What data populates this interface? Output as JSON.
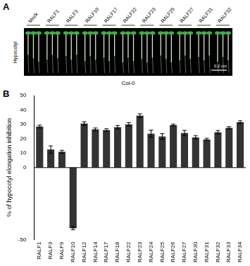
{
  "panel_a": {
    "label": "A",
    "column_labels": [
      "Mock",
      "RALF1",
      "RALF3",
      "RALF10",
      "RALF17",
      "RALF22",
      "RALF23",
      "RALF25",
      "RALF27",
      "RALF31",
      "RALF32"
    ],
    "side_label": "Hypocotyl",
    "scale_bar": "0.2 cm",
    "genotype": "Col-0"
  },
  "panel_b_label": "B",
  "chart_data": {
    "type": "bar",
    "y_label": "% of hypocotyl elongation inhibition",
    "categories": [
      "RALF1",
      "RALF3",
      "RALF9",
      "RALF10",
      "RALF12",
      "RALF14",
      "RALF17",
      "RALF18",
      "RALF22",
      "RALF23",
      "RALF24",
      "RALF25",
      "RALF26",
      "RALF27",
      "RALF30",
      "RALF31",
      "RALF32",
      "RALF33",
      "RALF34"
    ],
    "values": [
      28.5,
      12.5,
      11,
      -42,
      30.5,
      26.5,
      26,
      28,
      30,
      36,
      23.5,
      21.5,
      29.5,
      24,
      21,
      19.5,
      24.5,
      27.5,
      31.5
    ],
    "errors": [
      1,
      2.5,
      1,
      1,
      1.2,
      1,
      1,
      1.2,
      1.2,
      1.3,
      2.5,
      2,
      0.6,
      1.8,
      1.2,
      0.8,
      1.2,
      0.8,
      1
    ],
    "color": "#333333",
    "ylim": [
      -50,
      50
    ],
    "yticks": [
      -50,
      0,
      10,
      20,
      30,
      40,
      50
    ],
    "grid": false
  }
}
